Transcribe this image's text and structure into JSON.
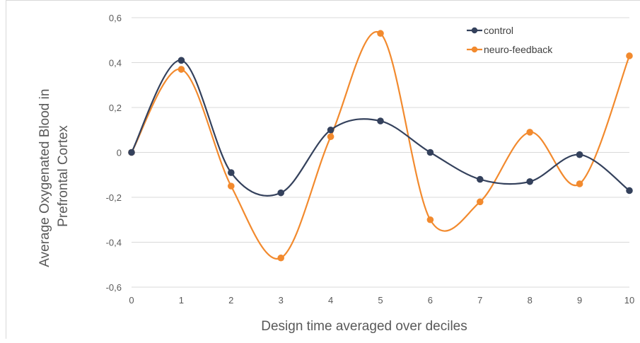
{
  "chart_data": {
    "type": "line",
    "title": "",
    "xlabel": "Design time averaged over deciles",
    "ylabel": [
      "Average Oxygenated Blood in",
      "Prefrontal Cortex"
    ],
    "x": [
      0,
      1,
      2,
      3,
      4,
      5,
      6,
      7,
      8,
      9,
      10
    ],
    "x_tick_labels": [
      "0",
      "1",
      "2",
      "3",
      "4",
      "5",
      "6",
      "7",
      "8",
      "9",
      "10"
    ],
    "ylim": [
      -0.6,
      0.6
    ],
    "y_ticks": [
      -0.6,
      -0.4,
      -0.2,
      0,
      0.2,
      0.4,
      0.6
    ],
    "y_tick_labels": [
      "-0,6",
      "-0,4",
      "-0,2",
      "0",
      "0,2",
      "0,4",
      "0,6"
    ],
    "grid": "horizontal",
    "legend_position": "top-right",
    "smoothed": true,
    "series": [
      {
        "name": "control",
        "color": "#34415c",
        "values": [
          0,
          0.41,
          -0.09,
          -0.18,
          0.1,
          0.14,
          0,
          -0.12,
          -0.13,
          -0.01,
          -0.17
        ]
      },
      {
        "name": "neuro-feedback",
        "color": "#f28a2e",
        "values": [
          0,
          0.37,
          -0.15,
          -0.47,
          0.07,
          0.53,
          -0.3,
          -0.22,
          0.09,
          -0.14,
          0.43
        ]
      }
    ]
  }
}
